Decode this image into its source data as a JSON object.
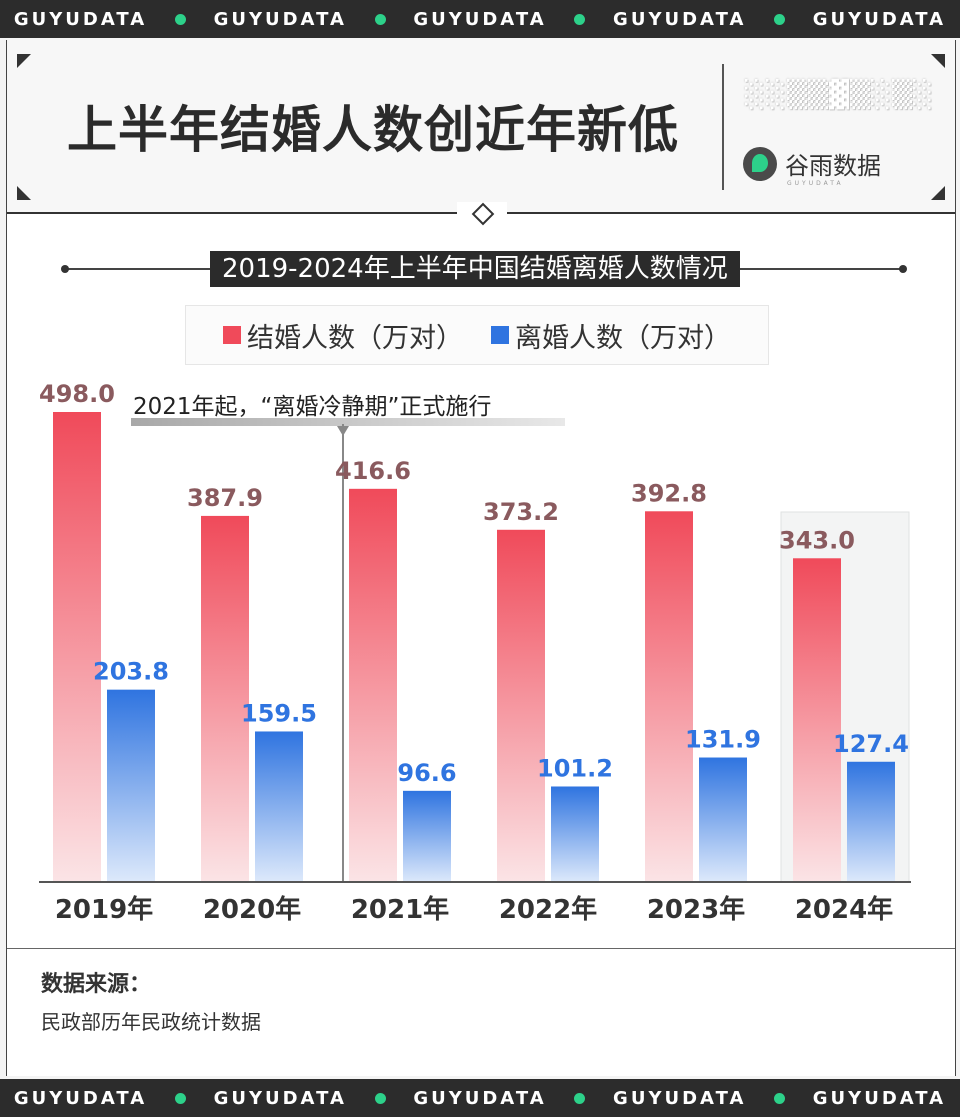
{
  "band": {
    "items": [
      "GUYUDATA",
      "GUYUDATA",
      "GUYUDATA",
      "GUYUDATA",
      "GUYUDATA"
    ],
    "dot_color": "#2dd18a"
  },
  "header": {
    "title": "上半年结婚人数创近年新低",
    "logo_text": "谷雨数据",
    "logo_sub": "GUYUDATA"
  },
  "chart_data": {
    "type": "bar",
    "title": "2019-2024年上半年中国结婚离婚人数情况",
    "categories": [
      "2019年",
      "2020年",
      "2021年",
      "2022年",
      "2023年",
      "2024年"
    ],
    "series": [
      {
        "name": "结婚人数（万对）",
        "color": "#f04a5a",
        "values": [
          498.0,
          387.9,
          416.6,
          373.2,
          392.8,
          343.0
        ]
      },
      {
        "name": "离婚人数（万对）",
        "color": "#2f74e0",
        "values": [
          203.8,
          159.5,
          96.6,
          101.2,
          131.9,
          127.4
        ]
      }
    ],
    "value_labels": {
      "marriage": [
        "498.0",
        "387.9",
        "416.6",
        "373.2",
        "392.8",
        "343.0"
      ],
      "divorce": [
        "203.8",
        "159.5",
        "96.6",
        "101.2",
        "131.9",
        "127.4"
      ]
    },
    "annotation": "2021年起，“离婚冷静期”正式施行",
    "highlight_category": "2024年",
    "ylim": [
      0,
      498
    ],
    "grid": false,
    "legend_position": "top"
  },
  "footer": {
    "source_label": "数据来源：",
    "source_text": "民政部历年民政统计数据"
  }
}
